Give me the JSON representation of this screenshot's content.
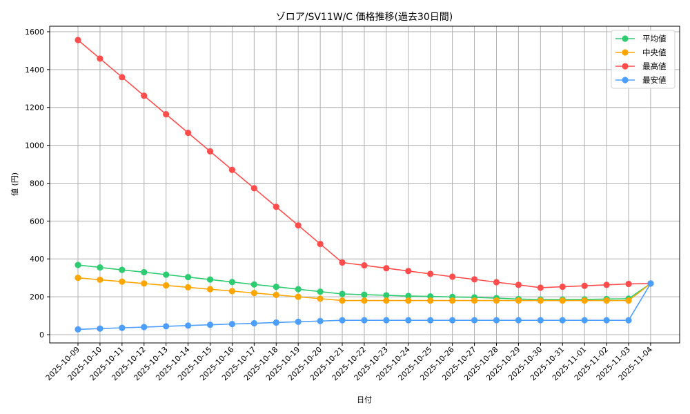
{
  "chart_data": {
    "type": "line",
    "title": "ゾロア/SV11W/C 価格推移(過去30日間)",
    "xlabel": "日付",
    "ylabel": "値 (円)",
    "ylim": [
      -45,
      1630
    ],
    "yticks": [
      0,
      200,
      400,
      600,
      800,
      1000,
      1200,
      1400,
      1600
    ],
    "grid": true,
    "legend_position": "upper right",
    "categories": [
      "2025-10-09",
      "2025-10-10",
      "2025-10-11",
      "2025-10-12",
      "2025-10-13",
      "2025-10-14",
      "2025-10-15",
      "2025-10-16",
      "2025-10-17",
      "2025-10-18",
      "2025-10-19",
      "2025-10-20",
      "2025-10-21",
      "2025-10-22",
      "2025-10-23",
      "2025-10-24",
      "2025-10-25",
      "2025-10-26",
      "2025-10-27",
      "2025-10-28",
      "2025-10-29",
      "2025-10-30",
      "2025-10-31",
      "2025-11-01",
      "2025-11-02",
      "2025-11-03",
      "2025-11-04"
    ],
    "series": [
      {
        "name": "平均値",
        "color": "#2ecc71",
        "values": [
          368,
          355,
          342,
          330,
          317,
          304,
          291,
          278,
          265,
          253,
          240,
          227,
          215,
          211,
          208,
          204,
          202,
          199,
          197,
          193,
          188,
          185,
          185,
          186,
          188,
          190,
          270
        ]
      },
      {
        "name": "中央値",
        "color": "#ffa500",
        "values": [
          300,
          290,
          280,
          270,
          260,
          250,
          240,
          230,
          220,
          210,
          200,
          190,
          180,
          180,
          180,
          180,
          180,
          180,
          180,
          180,
          180,
          180,
          180,
          180,
          180,
          180,
          270
        ]
      },
      {
        "name": "最高値",
        "color": "#ff4d4d",
        "values": [
          1556,
          1458,
          1360,
          1262,
          1164,
          1066,
          968,
          870,
          773,
          675,
          577,
          479,
          381,
          366,
          351,
          336,
          321,
          306,
          292,
          277,
          263,
          248,
          253,
          258,
          263,
          268,
          270
        ]
      },
      {
        "name": "最安値",
        "color": "#4d9fff",
        "values": [
          28,
          32,
          36,
          40,
          44,
          48,
          52,
          56,
          60,
          64,
          68,
          72,
          76,
          76,
          76,
          76,
          76,
          76,
          76,
          76,
          76,
          76,
          76,
          76,
          76,
          76,
          270
        ]
      }
    ]
  }
}
